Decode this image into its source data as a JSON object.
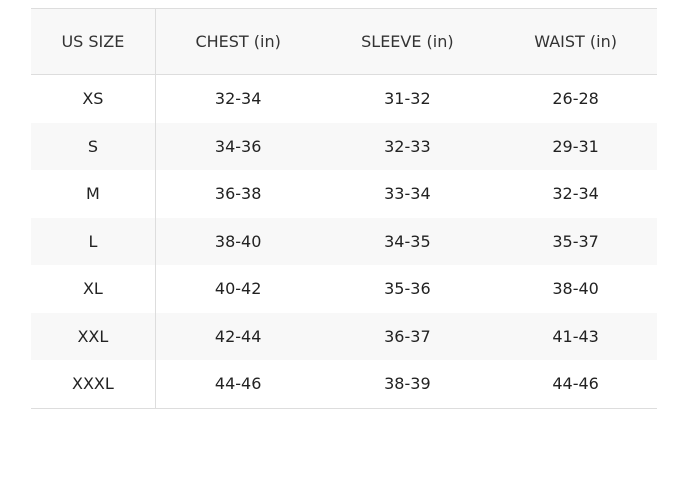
{
  "table": {
    "headers": [
      "US SIZE",
      "CHEST (in)",
      "SLEEVE (in)",
      "WAIST (in)"
    ],
    "rows": [
      [
        "XS",
        "32-34",
        "31-32",
        "26-28"
      ],
      [
        "S",
        "34-36",
        "32-33",
        "29-31"
      ],
      [
        "M",
        "36-38",
        "33-34",
        "32-34"
      ],
      [
        "L",
        "38-40",
        "34-35",
        "35-37"
      ],
      [
        "XL",
        "40-42",
        "35-36",
        "38-40"
      ],
      [
        "XXL",
        "42-44",
        "36-37",
        "41-43"
      ],
      [
        "XXXL",
        "44-46",
        "38-39",
        "44-46"
      ]
    ]
  }
}
